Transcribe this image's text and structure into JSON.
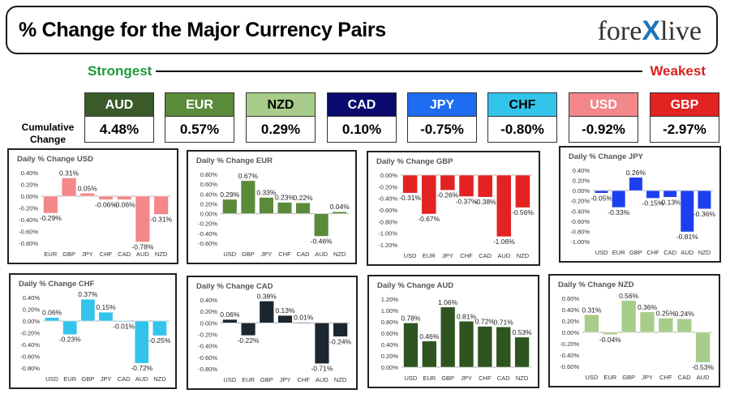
{
  "header": {
    "title": "% Change for the Major Currency Pairs",
    "brand_pre": "fore",
    "brand_x": "X",
    "brand_post": "live"
  },
  "labels": {
    "strongest": "Strongest",
    "weakest": "Weakest",
    "cumulative": "Cumulative Change"
  },
  "currencies": [
    {
      "name": "AUD",
      "value": "4.48%",
      "bg": "#3a5a2a",
      "fg": "#ffffff"
    },
    {
      "name": "EUR",
      "value": "0.57%",
      "bg": "#5a8a3a",
      "fg": "#ffffff"
    },
    {
      "name": "NZD",
      "value": "0.29%",
      "bg": "#a8cc8a",
      "fg": "#000000"
    },
    {
      "name": "CAD",
      "value": "0.10%",
      "bg": "#0a0a6e",
      "fg": "#ffffff"
    },
    {
      "name": "JPY",
      "value": "-0.75%",
      "bg": "#1e6cf0",
      "fg": "#ffffff"
    },
    {
      "name": "CHF",
      "value": "-0.80%",
      "bg": "#33c4ec",
      "fg": "#000000"
    },
    {
      "name": "USD",
      "value": "-0.92%",
      "bg": "#f4878a",
      "fg": "#ffffff"
    },
    {
      "name": "GBP",
      "value": "-2.97%",
      "bg": "#e32222",
      "fg": "#ffffff"
    }
  ],
  "chart_data": [
    {
      "type": "bar",
      "title": "Daily % Change USD",
      "categories": [
        "EUR",
        "GBP",
        "JPY",
        "CHF",
        "CAD",
        "AUD",
        "NZD"
      ],
      "values": [
        -0.29,
        0.31,
        0.05,
        -0.06,
        -0.06,
        -0.78,
        -0.31
      ],
      "labels": [
        "-0.29%",
        "0.31%",
        "0.05%",
        "-0.06%",
        "-0.06%",
        "-0.78%",
        "-0.31%"
      ],
      "ylim": [
        -0.8,
        0.4
      ],
      "ticks": [
        "0.40%",
        "0.20%",
        "0.00%",
        "-0.20%",
        "-0.40%",
        "-0.60%",
        "-0.80%"
      ],
      "color": "#f4878a"
    },
    {
      "type": "bar",
      "title": "Daily % Change EUR",
      "categories": [
        "USD",
        "GBP",
        "JPY",
        "CHF",
        "CAD",
        "AUD",
        "NZD"
      ],
      "values": [
        0.29,
        0.67,
        0.33,
        0.23,
        0.22,
        -0.46,
        0.04
      ],
      "labels": [
        "0.29%",
        "0.67%",
        "0.33%",
        "0.23%",
        "0.22%",
        "-0.46%",
        "0.04%"
      ],
      "ylim": [
        -0.6,
        0.8
      ],
      "ticks": [
        "0.80%",
        "0.60%",
        "0.40%",
        "0.20%",
        "0.00%",
        "-0.20%",
        "-0.40%",
        "-0.60%"
      ],
      "color": "#5a8a3a"
    },
    {
      "type": "bar",
      "title": "Daily % Change GBP",
      "categories": [
        "USD",
        "EUR",
        "JPY",
        "CHF",
        "CAD",
        "AUD",
        "NZD"
      ],
      "values": [
        -0.31,
        -0.67,
        -0.26,
        -0.37,
        -0.38,
        -1.06,
        -0.56
      ],
      "labels": [
        "-0.31%",
        "-0.67%",
        "-0.26%",
        "-0.37%",
        "-0.38%",
        "-1.06%",
        "-0.56%"
      ],
      "ylim": [
        -1.2,
        0.0
      ],
      "ticks": [
        "0.00%",
        "-0.20%",
        "-0.40%",
        "-0.60%",
        "-0.80%",
        "-1.00%",
        "-1.20%"
      ],
      "color": "#e32222"
    },
    {
      "type": "bar",
      "title": "Daily % Change JPY",
      "categories": [
        "USD",
        "EUR",
        "GBP",
        "CHF",
        "CAD",
        "AUD",
        "NZD"
      ],
      "values": [
        -0.05,
        -0.33,
        0.26,
        -0.15,
        -0.13,
        -0.81,
        -0.36
      ],
      "labels": [
        "-0.05%",
        "-0.33%",
        "0.26%",
        "-0.15%",
        "-0.13%",
        "-0.81%",
        "-0.36%"
      ],
      "ylim": [
        -1.0,
        0.4
      ],
      "ticks": [
        "0.40%",
        "0.20%",
        "0.00%",
        "-0.20%",
        "-0.40%",
        "-0.60%",
        "-0.80%",
        "-1.00%"
      ],
      "color": "#1e3ff0"
    },
    {
      "type": "bar",
      "title": "Daily % Change CHF",
      "categories": [
        "USD",
        "EUR",
        "GBP",
        "JPY",
        "CAD",
        "AUD",
        "NZD"
      ],
      "values": [
        0.06,
        -0.23,
        0.37,
        0.15,
        -0.01,
        -0.72,
        -0.25
      ],
      "labels": [
        "0.06%",
        "-0.23%",
        "0.37%",
        "0.15%",
        "-0.01%",
        "-0.72%",
        "-0.25%"
      ],
      "ylim": [
        -0.8,
        0.4
      ],
      "ticks": [
        "0.40%",
        "0.20%",
        "0.00%",
        "-0.20%",
        "-0.40%",
        "-0.60%",
        "-0.80%"
      ],
      "color": "#33c4ec"
    },
    {
      "type": "bar",
      "title": "Daily % Change CAD",
      "categories": [
        "USD",
        "EUR",
        "GBP",
        "JPY",
        "CHF",
        "AUD",
        "NZD"
      ],
      "values": [
        0.06,
        -0.22,
        0.38,
        0.13,
        0.01,
        -0.71,
        -0.24
      ],
      "labels": [
        "0.06%",
        "-0.22%",
        "0.38%",
        "0.13%",
        "0.01%",
        "-0.71%",
        "-0.24%"
      ],
      "ylim": [
        -0.8,
        0.4
      ],
      "ticks": [
        "0.40%",
        "0.20%",
        "0.00%",
        "-0.20%",
        "-0.40%",
        "-0.60%",
        "-0.80%"
      ],
      "color": "#1c2630"
    },
    {
      "type": "bar",
      "title": "Daily % Change AUD",
      "categories": [
        "USD",
        "EUR",
        "GBP",
        "JPY",
        "CHF",
        "CAD",
        "NZD"
      ],
      "values": [
        0.78,
        0.46,
        1.06,
        0.81,
        0.72,
        0.71,
        0.53
      ],
      "labels": [
        "0.78%",
        "0.46%",
        "1.06%",
        "0.81%",
        "0.72%",
        "0.71%",
        "0.53%"
      ],
      "ylim": [
        0.0,
        1.2
      ],
      "ticks": [
        "1.20%",
        "1.00%",
        "0.80%",
        "0.60%",
        "0.40%",
        "0.20%",
        "0.00%"
      ],
      "color": "#2e5420"
    },
    {
      "type": "bar",
      "title": "Daily % Change NZD",
      "categories": [
        "USD",
        "EUR",
        "GBP",
        "JPY",
        "CHF",
        "CAD",
        "AUD"
      ],
      "values": [
        0.31,
        -0.04,
        0.56,
        0.36,
        0.25,
        0.24,
        -0.53
      ],
      "labels": [
        "0.31%",
        "-0.04%",
        "0.56%",
        "0.36%",
        "0.25%",
        "0.24%",
        "-0.53%"
      ],
      "ylim": [
        -0.6,
        0.6
      ],
      "ticks": [
        "0.60%",
        "0.40%",
        "0.20%",
        "0.00%",
        "-0.20%",
        "-0.40%",
        "-0.60%"
      ],
      "color": "#a8cc8a"
    }
  ]
}
